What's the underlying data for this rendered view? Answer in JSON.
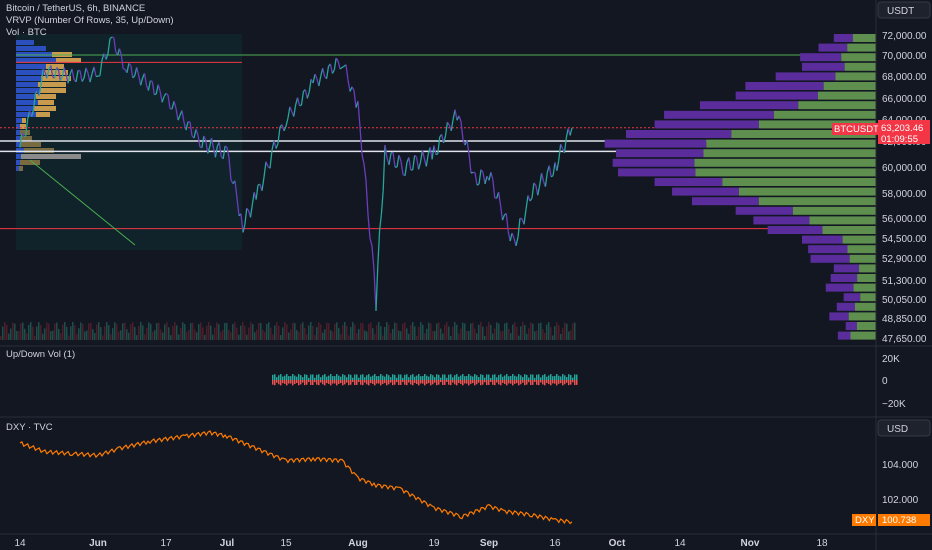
{
  "header": {
    "title": "Bitcoin / TetherUS, 6h, BINANCE",
    "indicator_vrvp": "VRVP (Number Of Rows, 35, Up/Down)",
    "indicator_vol": "Vol · BTC",
    "currency_button": "USDT"
  },
  "price_tag": {
    "symbol": "BTCUSDT",
    "price": "63,203.46",
    "countdown": "01:09:55"
  },
  "panes": {
    "updown_title": "Up/Down Vol (1)",
    "dxy_title": "DXY · TVC",
    "dxy_button": "USD",
    "dxy_tag_symbol": "DXY",
    "dxy_tag_value": "100.738"
  },
  "colors": {
    "background": "#131722",
    "up_candle": "#26a69a",
    "down_candle": "#6a3dbd",
    "vrvp_up": "#5e8f4f",
    "vrvp_down": "#5b2d9c",
    "red_line": "#f23645",
    "green_line": "#4caf50",
    "dxy_line": "#ff7b00",
    "price_tag": "#f23645"
  },
  "chart_data": [
    {
      "type": "line",
      "title": "Bitcoin / TetherUS, 6h, BINANCE",
      "x_ticks": [
        "14",
        "Jun",
        "17",
        "Jul",
        "15",
        "Aug",
        "19",
        "Sep",
        "16",
        "Oct",
        "14",
        "Nov",
        "18"
      ],
      "y_ticks": [
        "72,000.00",
        "70,000.00",
        "68,000.00",
        "66,000.00",
        "64,000.00",
        "62,000.00",
        "60,000.00",
        "58,000.00",
        "56,000.00",
        "54,500.00",
        "52,900.00",
        "51,300.00",
        "50,050.00",
        "48,850.00",
        "47,650.00"
      ],
      "series": [
        {
          "x": [
            "14 May",
            "20 May",
            "26 May",
            "Jun",
            "4 Jun",
            "8 Jun",
            "17 Jun",
            "24 Jun",
            "Jul",
            "5 Jul",
            "10 Jul",
            "15 Jul",
            "22 Jul",
            "29 Jul",
            "Aug",
            "5 Aug",
            "8 Aug",
            "14 Aug",
            "19 Aug",
            "24 Aug",
            "28 Aug",
            "Sep",
            "7 Sep",
            "12 Sep",
            "16 Sep",
            "20 Sep"
          ],
          "y": [
            61500,
            68500,
            68000,
            68200,
            71500,
            69000,
            66000,
            62000,
            61000,
            55500,
            58000,
            64000,
            67500,
            69500,
            65000,
            50000,
            61000,
            60000,
            61000,
            64500,
            59000,
            59500,
            54000,
            58000,
            60000,
            63200
          ]
        }
      ],
      "horizontal_lines": [
        70000,
        69300,
        63200,
        62000,
        61200,
        55200
      ],
      "ylim": [
        47650,
        72000
      ]
    },
    {
      "type": "bar",
      "title": "Up/Down Vol (1)",
      "y_ticks": [
        "20K",
        "0",
        "−20K"
      ],
      "ylim": [
        -20000,
        20000
      ]
    },
    {
      "type": "line",
      "title": "DXY · TVC",
      "y_ticks": [
        "104.000",
        "102.000"
      ],
      "series": [
        {
          "x": [
            "14 May",
            "20 May",
            "27 May",
            "Jun",
            "7 Jun",
            "14 Jun",
            "21 Jun",
            "26 Jun",
            "Jul",
            "8 Jul",
            "15 Jul",
            "22 Jul",
            "29 Jul",
            "Aug",
            "5 Aug",
            "12 Aug",
            "19 Aug",
            "26 Aug",
            "Sep",
            "6 Sep",
            "12 Sep",
            "16 Sep",
            "20 Sep"
          ],
          "y": [
            105.2,
            104.7,
            104.6,
            104.5,
            104.9,
            105.3,
            105.6,
            105.8,
            105.6,
            105.0,
            104.2,
            104.3,
            104.2,
            103.2,
            102.8,
            102.6,
            101.5,
            101.0,
            101.6,
            101.3,
            101.1,
            100.8,
            100.7
          ]
        }
      ],
      "ylim": [
        100.5,
        106
      ]
    }
  ]
}
